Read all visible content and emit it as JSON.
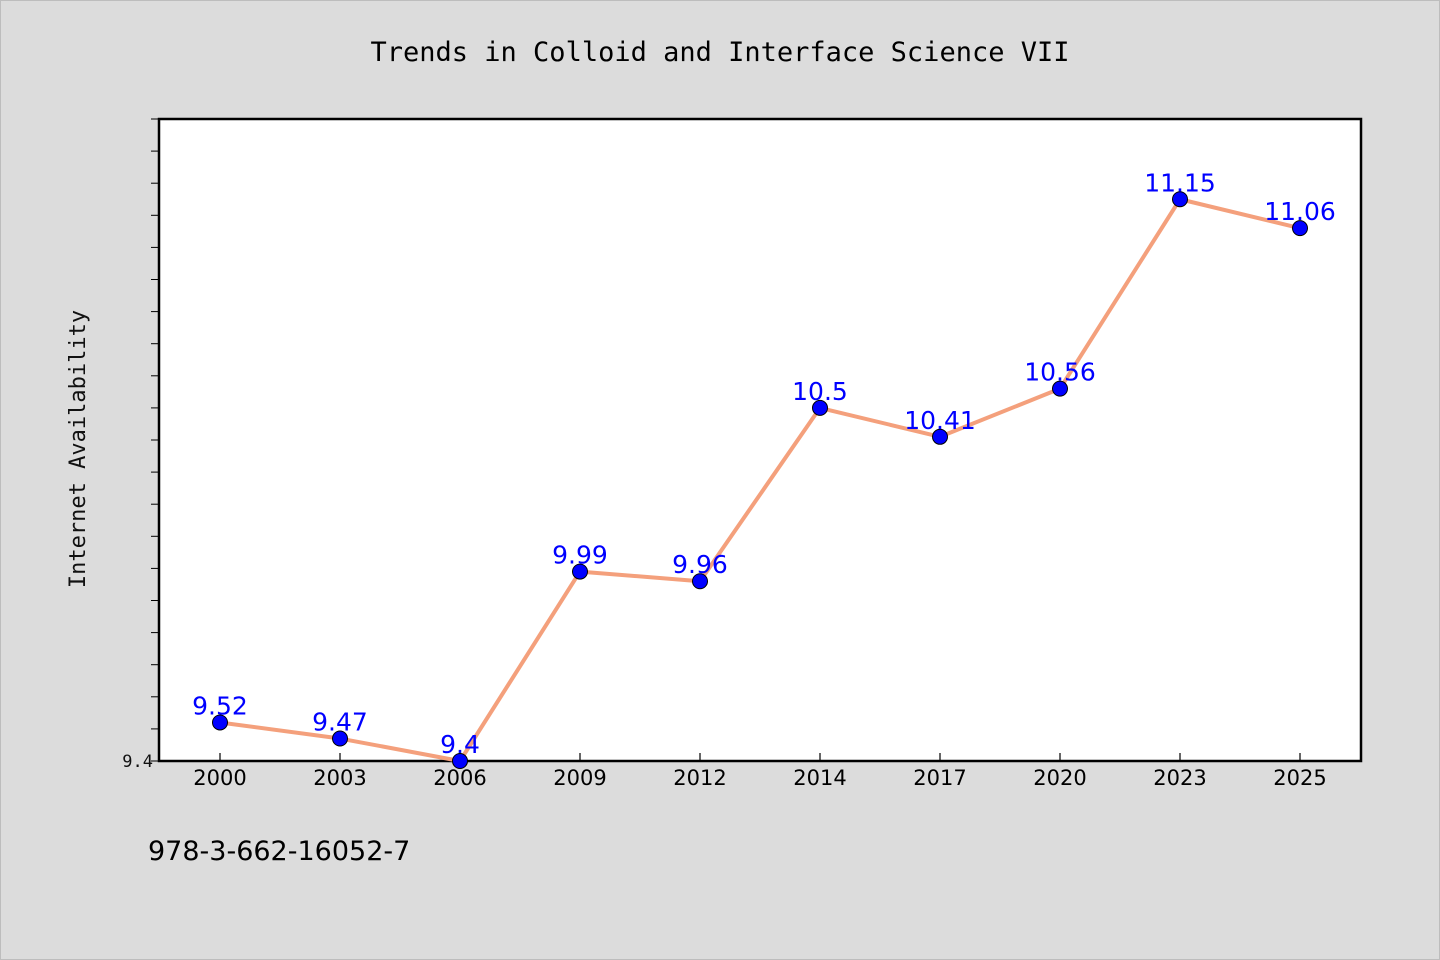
{
  "chart_data": {
    "type": "line",
    "title": "Trends in Colloid and Interface Science VII",
    "xlabel": "",
    "ylabel": "Internet Availability",
    "categories": [
      "2000",
      "2003",
      "2006",
      "2009",
      "2012",
      "2014",
      "2017",
      "2020",
      "2023",
      "2025"
    ],
    "series": [
      {
        "values": [
          9.52,
          9.47,
          9.4,
          9.99,
          9.96,
          10.5,
          10.41,
          10.56,
          11.15,
          11.06
        ],
        "data_labels": [
          "9.52",
          "9.47",
          "9.4",
          "9.99",
          "9.96",
          "10.5",
          "10.41",
          "10.56",
          "11.15",
          "11.06"
        ],
        "line_color": "#f4a07c",
        "marker_color": "#0000ff",
        "label_color": "#0000ff"
      }
    ],
    "ylim": [
      9.4,
      11.4
    ],
    "yticks_labeled": [
      "9.4"
    ],
    "grid": false,
    "legend": "none"
  },
  "footer": {
    "isbn": "978-3-662-16052-7"
  },
  "colors": {
    "background": "#dcdcdc",
    "plot_background": "#ffffff",
    "axis": "#000000"
  }
}
